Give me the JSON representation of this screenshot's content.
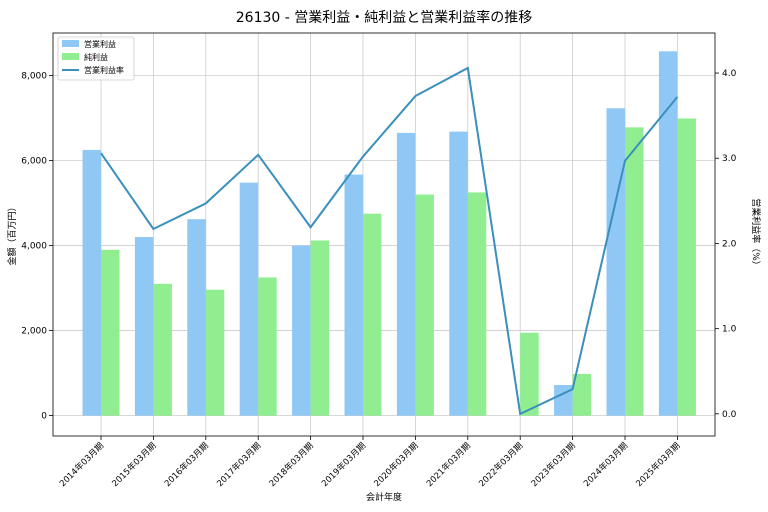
{
  "chart_data": {
    "type": "bar",
    "title": "26130 - 営業利益・純利益と営業利益率の推移",
    "xlabel": "会計年度",
    "ylabel": "金額（百万円）",
    "y2label": "営業利益率（%）",
    "categories": [
      "2014年03月期",
      "2015年03月期",
      "2016年03月期",
      "2017年03月期",
      "2018年03月期",
      "2019年03月期",
      "2020年03月期",
      "2021年03月期",
      "2022年03月期",
      "2023年03月期",
      "2024年03月期",
      "2025年03月期"
    ],
    "series": [
      {
        "name": "営業利益",
        "kind": "bar",
        "axis": "left",
        "color": "#90c8f5",
        "values": [
          6250,
          4200,
          4620,
          5480,
          4000,
          5670,
          6650,
          6680,
          0,
          720,
          7230,
          8570
        ]
      },
      {
        "name": "純利益",
        "kind": "bar",
        "axis": "left",
        "color": "#90ee90",
        "values": [
          3900,
          3100,
          2960,
          3250,
          4120,
          4750,
          5200,
          5250,
          1950,
          980,
          6780,
          6990
        ]
      },
      {
        "name": "営業利益率",
        "kind": "line",
        "axis": "right",
        "color": "#3a8fbd",
        "values": [
          3.06,
          2.17,
          2.47,
          3.04,
          2.19,
          3.02,
          3.73,
          4.06,
          0.0,
          0.29,
          2.97,
          3.72
        ]
      }
    ],
    "ylim": [
      -480,
      9000
    ],
    "y2lim": [
      -0.26,
      4.47
    ],
    "yticks": [
      0,
      2000,
      4000,
      6000,
      8000
    ],
    "ytick_labels": [
      "0",
      "2,000",
      "4,000",
      "6,000",
      "8,000"
    ],
    "y2ticks": [
      0,
      1,
      2,
      3,
      4
    ],
    "y2tick_labels": [
      "0.0",
      "1.0",
      "2.0",
      "3.0",
      "4.0"
    ],
    "grid": true,
    "legend_position": "top-left"
  }
}
